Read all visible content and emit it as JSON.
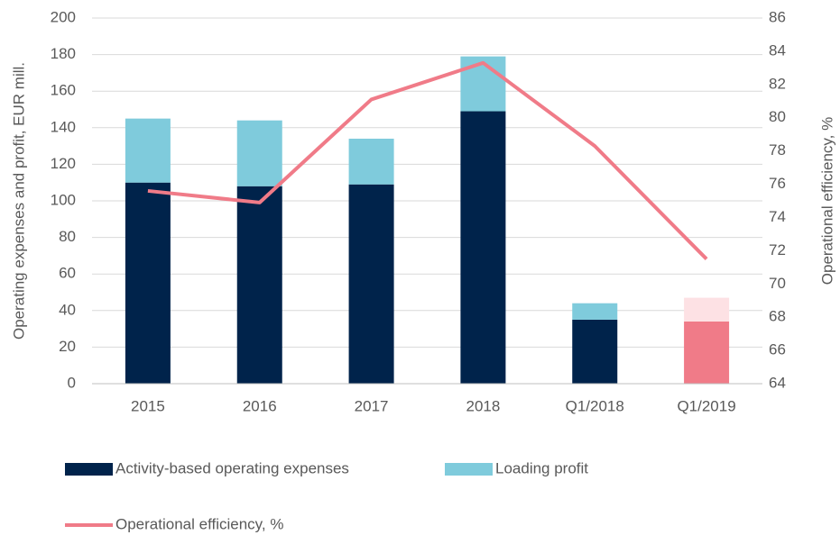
{
  "chart_data": {
    "type": "bar-line",
    "categories": [
      "2015",
      "2016",
      "2017",
      "2018",
      "Q1/2018",
      "Q1/2019"
    ],
    "series": [
      {
        "name": "Activity-based operating expenses",
        "type": "bar",
        "color": "#00234b",
        "colors": [
          "#00234b",
          "#00234b",
          "#00234b",
          "#00234b",
          "#00234b",
          "#f07b88"
        ],
        "values": [
          110,
          108,
          109,
          149,
          35,
          34
        ]
      },
      {
        "name": "Loading profit",
        "type": "bar",
        "color": "#7fcbdc",
        "colors": [
          "#7fcbdc",
          "#7fcbdc",
          "#7fcbdc",
          "#7fcbdc",
          "#7fcbdc",
          "#fde1e4"
        ],
        "values": [
          35,
          36,
          25,
          30,
          9,
          13
        ]
      },
      {
        "name": "Operational efficiency, %",
        "type": "line",
        "axis": "y2",
        "color": "#f07b88",
        "values": [
          75.6,
          74.9,
          81.1,
          83.3,
          78.3,
          71.5
        ]
      }
    ],
    "y_label": "Operating expenses and profit, EUR mill.",
    "y2_label": "Operational efficiency, %",
    "ylim": [
      0,
      200
    ],
    "yticks": [
      0,
      20,
      40,
      60,
      80,
      100,
      120,
      140,
      160,
      180,
      200
    ],
    "y2lim": [
      64,
      86
    ],
    "y2ticks": [
      64,
      66,
      68,
      70,
      72,
      74,
      76,
      78,
      80,
      82,
      84,
      86
    ],
    "stacked": true,
    "grid": true,
    "legend": "bottom"
  }
}
